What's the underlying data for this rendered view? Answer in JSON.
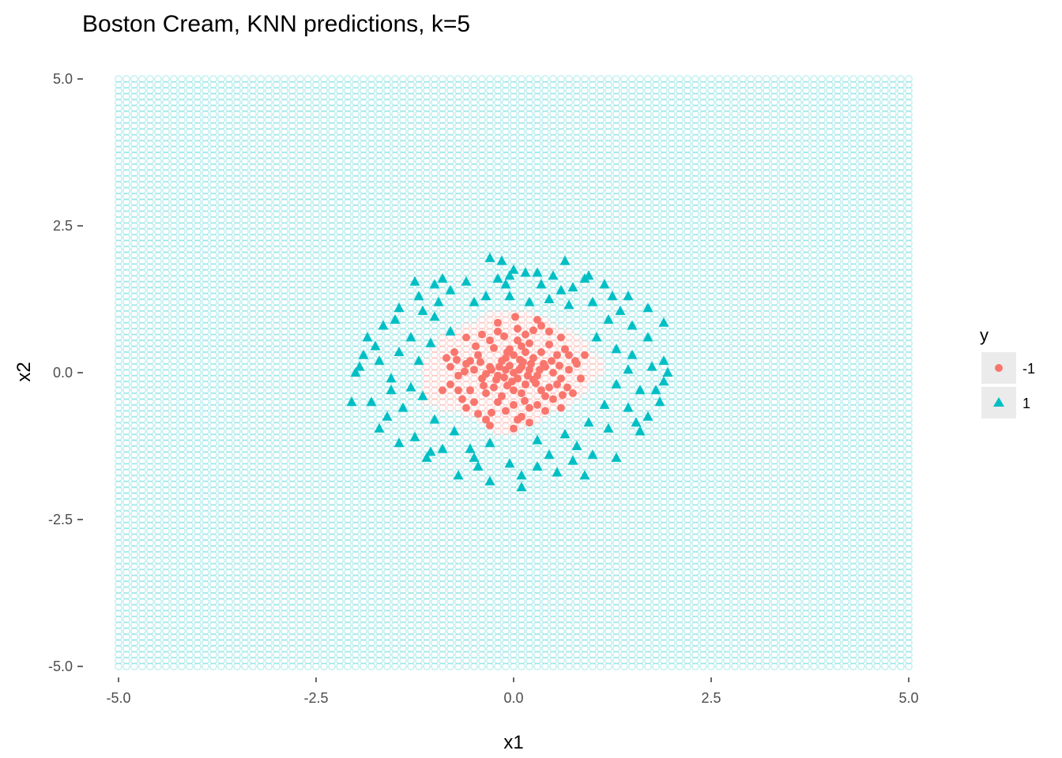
{
  "chart_data": {
    "type": "scatter",
    "title": "Boston Cream, KNN predictions, k=5",
    "xlabel": "x1",
    "ylabel": "x2",
    "xlim": [
      -5.0,
      5.0
    ],
    "ylim": [
      -5.0,
      5.0
    ],
    "x_ticks": [
      "-5.0",
      "-2.5",
      "0.0",
      "2.5",
      "5.0"
    ],
    "y_ticks": [
      "5.0",
      "2.5",
      "0.0",
      "-2.5",
      "-5.0"
    ],
    "x_tick_values": [
      -5.0,
      -2.5,
      0.0,
      2.5,
      5.0
    ],
    "y_tick_values": [
      5.0,
      2.5,
      0.0,
      -2.5,
      -5.0
    ],
    "legend": {
      "title": "y",
      "placement": "right",
      "entries": [
        {
          "label": "-1",
          "shape": "circle",
          "color": "#F8766D"
        },
        {
          "label": "1",
          "shape": "triangle",
          "color": "#00BFC4"
        }
      ]
    },
    "prediction_grid": {
      "step": 0.1,
      "shape": "open-circle",
      "class_1_color": "#00BFC4",
      "class_minus1_color": "#F8766D",
      "class_minus1_region_rows": [
        [
          0.95,
          -0.3,
          0.25
        ],
        [
          0.85,
          -0.45,
          0.4
        ],
        [
          0.75,
          -0.6,
          0.55
        ],
        [
          0.65,
          -0.75,
          0.75
        ],
        [
          0.55,
          -0.9,
          0.85
        ],
        [
          0.45,
          -0.95,
          0.9
        ],
        [
          0.35,
          -1.0,
          0.95
        ],
        [
          0.25,
          -1.05,
          1.05
        ],
        [
          0.15,
          -1.1,
          1.1
        ],
        [
          0.05,
          -1.1,
          1.1
        ],
        [
          -0.05,
          -1.1,
          1.05
        ],
        [
          -0.15,
          -1.1,
          0.95
        ],
        [
          -0.25,
          -1.1,
          0.9
        ],
        [
          -0.35,
          -1.1,
          0.85
        ],
        [
          -0.45,
          -1.1,
          0.7
        ],
        [
          -0.55,
          -0.95,
          0.55
        ],
        [
          -0.65,
          -0.65,
          0.45
        ],
        [
          -0.75,
          -0.45,
          0.3
        ],
        [
          -0.85,
          -0.3,
          0.15
        ],
        [
          -0.95,
          -0.2,
          0.0
        ]
      ]
    },
    "series": [
      {
        "name": "-1",
        "shape": "circle",
        "color": "#F8766D",
        "points": [
          [
            0.0,
            0.0
          ],
          [
            0.1,
            0.1
          ],
          [
            -0.1,
            0.05
          ],
          [
            0.05,
            -0.1
          ],
          [
            0.2,
            0.05
          ],
          [
            -0.2,
            -0.05
          ],
          [
            0.15,
            -0.2
          ],
          [
            -0.15,
            0.2
          ],
          [
            0.25,
            0.25
          ],
          [
            -0.25,
            -0.25
          ],
          [
            0.3,
            -0.05
          ],
          [
            -0.3,
            0.1
          ],
          [
            0.0,
            0.3
          ],
          [
            0.0,
            -0.3
          ],
          [
            0.1,
            -0.35
          ],
          [
            -0.05,
            0.4
          ],
          [
            0.35,
            0.35
          ],
          [
            -0.35,
            -0.35
          ],
          [
            0.4,
            0.1
          ],
          [
            -0.4,
            -0.1
          ],
          [
            0.45,
            -0.25
          ],
          [
            -0.45,
            0.3
          ],
          [
            0.2,
            0.5
          ],
          [
            -0.2,
            -0.5
          ],
          [
            0.5,
            0.0
          ],
          [
            -0.5,
            0.05
          ],
          [
            0.05,
            0.55
          ],
          [
            0.0,
            -0.55
          ],
          [
            0.55,
            0.3
          ],
          [
            -0.55,
            -0.3
          ],
          [
            0.3,
            -0.55
          ],
          [
            -0.3,
            0.55
          ],
          [
            0.6,
            -0.1
          ],
          [
            -0.6,
            0.15
          ],
          [
            0.15,
            0.65
          ],
          [
            -0.1,
            -0.65
          ],
          [
            0.65,
            0.4
          ],
          [
            -0.65,
            -0.45
          ],
          [
            0.4,
            -0.65
          ],
          [
            -0.4,
            0.65
          ],
          [
            0.7,
            0.05
          ],
          [
            -0.7,
            -0.05
          ],
          [
            0.05,
            0.75
          ],
          [
            0.1,
            -0.75
          ],
          [
            0.75,
            -0.35
          ],
          [
            -0.75,
            0.35
          ],
          [
            0.35,
            0.8
          ],
          [
            -0.35,
            -0.8
          ],
          [
            0.8,
            0.15
          ],
          [
            -0.8,
            -0.2
          ],
          [
            0.2,
            -0.85
          ],
          [
            -0.2,
            0.85
          ],
          [
            0.15,
            0.35
          ],
          [
            -0.1,
            0.25
          ],
          [
            0.28,
            -0.18
          ],
          [
            -0.22,
            -0.12
          ],
          [
            0.12,
            0.18
          ],
          [
            -0.08,
            -0.22
          ],
          [
            0.33,
            0.05
          ],
          [
            -0.35,
            -0.02
          ],
          [
            0.45,
            0.48
          ],
          [
            -0.48,
            0.45
          ],
          [
            0.5,
            -0.45
          ],
          [
            -0.5,
            -0.5
          ],
          [
            0.58,
            0.12
          ],
          [
            -0.62,
            0.02
          ],
          [
            0.25,
            0.72
          ],
          [
            -0.28,
            -0.68
          ],
          [
            0.68,
            -0.25
          ],
          [
            -0.72,
            0.22
          ],
          [
            0.02,
            0.95
          ],
          [
            0.0,
            -0.95
          ],
          [
            -0.85,
            0.25
          ],
          [
            0.85,
            -0.1
          ],
          [
            0.9,
            0.3
          ],
          [
            -0.9,
            -0.3
          ],
          [
            0.3,
            0.9
          ],
          [
            -0.3,
            -0.9
          ],
          [
            0.6,
            0.6
          ],
          [
            -0.6,
            0.6
          ],
          [
            0.6,
            -0.6
          ],
          [
            -0.6,
            -0.6
          ],
          [
            0.07,
            0.05
          ],
          [
            -0.12,
            -0.08
          ],
          [
            0.18,
            -0.05
          ],
          [
            -0.05,
            0.12
          ],
          [
            0.22,
            0.15
          ],
          [
            -0.18,
            0.1
          ],
          [
            0.4,
            -0.4
          ],
          [
            -0.42,
            0.18
          ],
          [
            0.48,
            0.2
          ],
          [
            -0.15,
            -0.4
          ],
          [
            0.1,
            0.45
          ],
          [
            -0.25,
            0.42
          ],
          [
            0.35,
            -0.3
          ],
          [
            -0.38,
            -0.22
          ],
          [
            0.55,
            -0.2
          ],
          [
            -0.55,
            0.2
          ],
          [
            0.2,
            -0.6
          ],
          [
            -0.12,
            0.62
          ],
          [
            0.7,
            0.3
          ],
          [
            -0.7,
            -0.3
          ],
          [
            0.45,
            0.7
          ],
          [
            -0.45,
            -0.7
          ],
          [
            0.25,
            -0.12
          ],
          [
            -0.02,
            -0.15
          ],
          [
            0.08,
            0.22
          ],
          [
            -0.28,
            0.05
          ],
          [
            0.38,
            0.15
          ],
          [
            -0.08,
            0.35
          ],
          [
            0.14,
            -0.48
          ],
          [
            0.62,
            -0.38
          ],
          [
            -0.2,
            0.7
          ],
          [
            0.78,
            0.2
          ],
          [
            -0.8,
            0.1
          ],
          [
            0.05,
            -0.8
          ]
        ]
      },
      {
        "name": "1",
        "shape": "triangle",
        "color": "#00BFC4",
        "points": [
          [
            -0.3,
            1.95
          ],
          [
            -0.15,
            1.9
          ],
          [
            0.3,
            1.7
          ],
          [
            0.65,
            1.9
          ],
          [
            -1.25,
            1.55
          ],
          [
            -1.0,
            1.5
          ],
          [
            -0.05,
            1.65
          ],
          [
            0.15,
            1.7
          ],
          [
            -0.2,
            1.6
          ],
          [
            0.5,
            1.65
          ],
          [
            0.9,
            1.6
          ],
          [
            1.15,
            1.5
          ],
          [
            -1.45,
            1.1
          ],
          [
            -1.2,
            1.3
          ],
          [
            -0.8,
            1.4
          ],
          [
            -0.5,
            1.2
          ],
          [
            -0.1,
            1.5
          ],
          [
            0.35,
            1.5
          ],
          [
            0.75,
            1.45
          ],
          [
            1.45,
            1.3
          ],
          [
            1.7,
            1.1
          ],
          [
            1.9,
            0.85
          ],
          [
            -1.65,
            0.8
          ],
          [
            -1.85,
            0.6
          ],
          [
            -1.9,
            0.3
          ],
          [
            -2.0,
            0.0
          ],
          [
            -2.05,
            -0.5
          ],
          [
            -1.7,
            -0.95
          ],
          [
            -1.45,
            -1.2
          ],
          [
            -1.1,
            -1.45
          ],
          [
            -0.7,
            -1.75
          ],
          [
            -0.3,
            -1.85
          ],
          [
            0.1,
            -1.95
          ],
          [
            0.55,
            -1.7
          ],
          [
            0.9,
            -1.75
          ],
          [
            1.3,
            -1.45
          ],
          [
            1.6,
            -1.0
          ],
          [
            1.85,
            -0.5
          ],
          [
            1.95,
            0.0
          ],
          [
            1.9,
            0.2
          ],
          [
            -1.55,
            -0.3
          ],
          [
            -1.7,
            0.2
          ],
          [
            -1.3,
            0.6
          ],
          [
            -1.0,
            0.95
          ],
          [
            -0.95,
            1.2
          ],
          [
            -0.6,
            1.55
          ],
          [
            0.45,
            1.25
          ],
          [
            1.0,
            1.2
          ],
          [
            1.2,
            0.9
          ],
          [
            1.5,
            0.8
          ],
          [
            1.7,
            0.6
          ],
          [
            1.5,
            0.3
          ],
          [
            1.75,
            0.1
          ],
          [
            1.6,
            -0.3
          ],
          [
            1.45,
            -0.6
          ],
          [
            1.2,
            -0.95
          ],
          [
            0.8,
            -1.25
          ],
          [
            0.45,
            -1.4
          ],
          [
            -0.05,
            -1.55
          ],
          [
            -0.5,
            -1.45
          ],
          [
            -0.9,
            -1.3
          ],
          [
            -1.25,
            -1.1
          ],
          [
            -1.4,
            -0.6
          ],
          [
            -1.55,
            -0.1
          ],
          [
            -1.2,
            0.2
          ],
          [
            -1.15,
            -0.4
          ],
          [
            -1.05,
            0.5
          ],
          [
            -0.8,
            0.7
          ],
          [
            1.05,
            0.6
          ],
          [
            1.3,
            0.4
          ],
          [
            1.3,
            -0.2
          ],
          [
            1.15,
            -0.55
          ],
          [
            0.95,
            -0.85
          ],
          [
            0.65,
            -1.05
          ],
          [
            0.3,
            -1.15
          ],
          [
            -0.3,
            -1.2
          ],
          [
            -0.75,
            -1.0
          ],
          [
            -1.0,
            -0.8
          ],
          [
            0.2,
            1.2
          ],
          [
            -0.35,
            1.3
          ],
          [
            0.7,
            1.15
          ],
          [
            1.8,
            -0.3
          ],
          [
            1.7,
            -0.75
          ],
          [
            -1.8,
            -0.5
          ],
          [
            -1.95,
            0.1
          ],
          [
            -1.5,
            0.9
          ],
          [
            -0.9,
            1.6
          ],
          [
            0.95,
            1.65
          ],
          [
            1.35,
            1.05
          ],
          [
            1.55,
            -0.85
          ],
          [
            1.0,
            -1.4
          ],
          [
            0.3,
            -1.6
          ],
          [
            -0.45,
            -1.6
          ],
          [
            -1.05,
            -1.35
          ],
          [
            -1.6,
            -0.75
          ],
          [
            -1.45,
            0.35
          ],
          [
            0.6,
            1.4
          ],
          [
            -0.05,
            1.3
          ],
          [
            1.45,
            0.05
          ],
          [
            -1.3,
            -0.25
          ],
          [
            -0.55,
            -1.3
          ],
          [
            0.75,
            -1.5
          ],
          [
            1.25,
            1.3
          ],
          [
            -1.15,
            1.05
          ],
          [
            1.9,
            -0.15
          ],
          [
            -1.75,
            0.45
          ],
          [
            0.0,
            1.75
          ],
          [
            0.1,
            -1.75
          ]
        ]
      }
    ]
  }
}
